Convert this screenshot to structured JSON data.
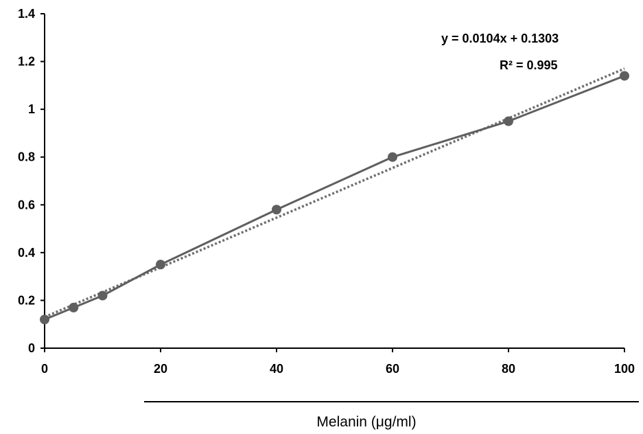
{
  "chart_data": {
    "type": "line",
    "x": [
      0,
      5,
      10,
      20,
      40,
      60,
      80,
      100
    ],
    "series": [
      {
        "values": [
          0.12,
          0.17,
          0.22,
          0.35,
          0.58,
          0.8,
          0.95,
          1.14
        ]
      }
    ],
    "trendline": {
      "slope": 0.0104,
      "intercept": 0.1303,
      "style": "dotted"
    },
    "annotations": [
      "y = 0.0104x + 0.1303",
      "R² = 0.995"
    ],
    "xlabel": "Melanin (μg/ml)",
    "ylabel": "",
    "xlim": [
      0,
      100
    ],
    "ylim": [
      0,
      1.4
    ],
    "x_ticks": [
      "0",
      "20",
      "40",
      "60",
      "80",
      "100"
    ],
    "y_ticks": [
      "0",
      "0.2",
      "0.4",
      "0.6",
      "0.8",
      "1",
      "1.2",
      "1.4"
    ],
    "grid": false,
    "colors": {
      "series": "#5f5f5f",
      "trendline": "#6e6e6e",
      "axis": "#000000"
    }
  }
}
